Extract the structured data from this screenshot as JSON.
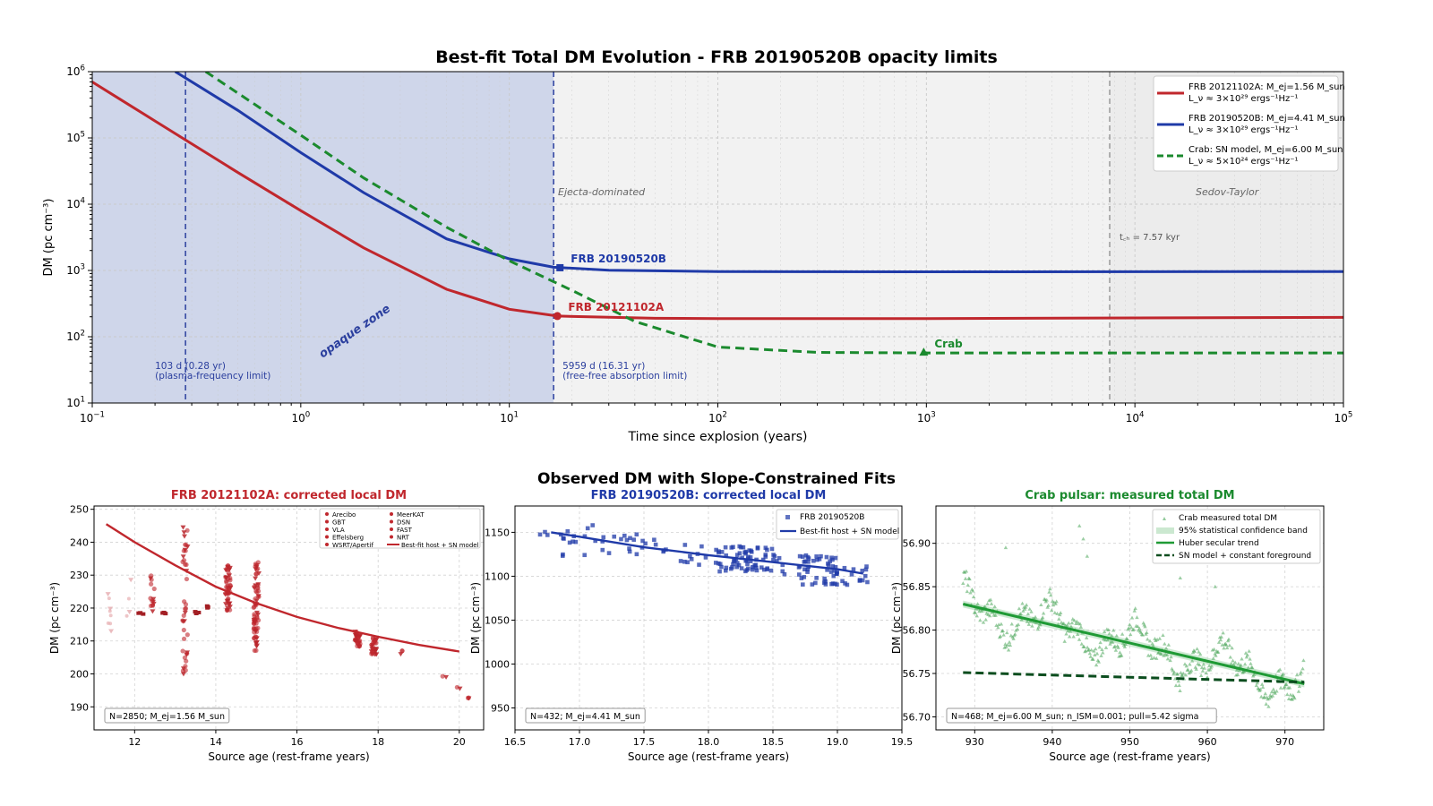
{
  "figure": {
    "top_title": "Best-fit Total DM Evolution - FRB 20190520B opacity limits",
    "bottom_title": "Observed DM with Slope-Constrained Fits"
  },
  "colors": {
    "frb121102": "#c0272d",
    "frb190520": "#1f3aa8",
    "crab": "#1b8a2e",
    "crab_sn": "#0b4d1e",
    "opaque_fill": "#cfd6ea",
    "ejecta_fill": "#f2f2f2",
    "sedov_fill": "#ececec"
  },
  "chart_data": [
    {
      "id": "top",
      "type": "line",
      "title": "Best-fit Total DM Evolution - FRB 20190520B opacity limits",
      "xlabel": "Time since explosion (years)",
      "ylabel": "DM (pc cm⁻³)",
      "xscale": "log",
      "yscale": "log",
      "xlim": [
        0.1,
        100000
      ],
      "ylim": [
        10,
        1000000
      ],
      "xticks": [
        {
          "v": 0.1,
          "b": "10",
          "e": "−1"
        },
        {
          "v": 1,
          "b": "10",
          "e": "0"
        },
        {
          "v": 10,
          "b": "10",
          "e": "1"
        },
        {
          "v": 100,
          "b": "10",
          "e": "2"
        },
        {
          "v": 1000,
          "b": "10",
          "e": "3"
        },
        {
          "v": 10000,
          "b": "10",
          "e": "4"
        },
        {
          "v": 100000,
          "b": "10",
          "e": "5"
        }
      ],
      "yticks": [
        {
          "v": 10,
          "b": "10",
          "e": "1"
        },
        {
          "v": 100,
          "b": "10",
          "e": "2"
        },
        {
          "v": 1000,
          "b": "10",
          "e": "3"
        },
        {
          "v": 10000,
          "b": "10",
          "e": "4"
        },
        {
          "v": 100000,
          "b": "10",
          "e": "5"
        },
        {
          "v": 1000000,
          "b": "10",
          "e": "6"
        }
      ],
      "grid": true,
      "legend_position": "top-right",
      "series": [
        {
          "key": "frb121102",
          "name": "FRB 20121102A: M_ej=1.56 M_sun",
          "sub": "L_ν ≈ 3×10²⁹ ergs⁻¹Hz⁻¹",
          "style": "solid",
          "points": [
            [
              0.1,
              700000
            ],
            [
              0.2,
              180000
            ],
            [
              0.5,
              30000
            ],
            [
              1,
              8000
            ],
            [
              2,
              2200
            ],
            [
              5,
              520
            ],
            [
              10,
              260
            ],
            [
              17.0,
              205
            ],
            [
              50,
              190
            ],
            [
              100,
              188
            ],
            [
              1000,
              188
            ],
            [
              10000,
              192
            ],
            [
              100000,
              196
            ]
          ]
        },
        {
          "key": "frb190520",
          "name": "FRB 20190520B: M_ej=4.41 M_sun",
          "sub": "L_ν ≈ 3×10²⁹ ergs⁻¹Hz⁻¹",
          "style": "solid",
          "points": [
            [
              0.25,
              1000000
            ],
            [
              0.5,
              260000
            ],
            [
              1,
              60000
            ],
            [
              2,
              15000
            ],
            [
              5,
              3000
            ],
            [
              10,
              1500
            ],
            [
              16.3,
              1120
            ],
            [
              30,
              1010
            ],
            [
              100,
              960
            ],
            [
              1000,
              955
            ],
            [
              10000,
              958
            ],
            [
              100000,
              962
            ]
          ]
        },
        {
          "key": "crab",
          "name": "Crab: SN model, M_ej=6.00 M_sun",
          "sub": "L_ν ≈ 5×10²⁴ ergs⁻¹Hz⁻¹",
          "style": "dashed",
          "points": [
            [
              0.35,
              1000000
            ],
            [
              1,
              110000
            ],
            [
              2,
              25000
            ],
            [
              5,
              4500
            ],
            [
              10,
              1400
            ],
            [
              20,
              500
            ],
            [
              40,
              170
            ],
            [
              100,
              70
            ],
            [
              300,
              58
            ],
            [
              1000,
              57
            ],
            [
              100000,
              57
            ]
          ]
        }
      ],
      "markers": [
        {
          "series": "frb190520",
          "shape": "square",
          "x": 17.5,
          "y": 1100,
          "label": "FRB 20190520B"
        },
        {
          "series": "frb121102",
          "shape": "circle",
          "x": 17.0,
          "y": 205,
          "label": "FRB 20121102A"
        },
        {
          "series": "crab",
          "shape": "triangle",
          "x": 971,
          "y": 57,
          "label": "Crab"
        }
      ],
      "regions": [
        {
          "key": "opaque",
          "from": 0.1,
          "to": 16.31
        },
        {
          "key": "ejecta",
          "from": 16.31,
          "to": 7570
        },
        {
          "key": "sedov",
          "from": 7570,
          "to": 100000
        }
      ],
      "vlines": [
        {
          "x": 0.28,
          "style": "dashed-blue",
          "label1": "103 d (0.28 yr)",
          "label2": "(plasma-frequency limit)"
        },
        {
          "x": 16.31,
          "style": "dashed-blue",
          "label1": "5959 d (16.31 yr)",
          "label2": "(free-free absorption limit)"
        },
        {
          "x": 7570,
          "style": "dashed-gray"
        }
      ],
      "annotations": {
        "opaque": "opaque zone",
        "ejecta": "Ejecta-dominated",
        "sedov": "Sedov-Taylor",
        "tch": "t_ch = 7.57 kyr"
      }
    },
    {
      "id": "p1",
      "type": "scatter",
      "title": "FRB 20121102A: corrected local DM",
      "xlabel": "Source age (rest-frame years)",
      "ylabel": "DM (pc cm⁻³)",
      "xlim": [
        11,
        20.6
      ],
      "ylim": [
        183,
        251
      ],
      "xticks": [
        12,
        14,
        16,
        18,
        20
      ],
      "yticks": [
        190,
        200,
        210,
        220,
        230,
        240,
        250
      ],
      "grid": true,
      "legend_position": "top-right",
      "legend": [
        "Arecibo",
        "GBT",
        "VLA",
        "Effelsberg",
        "WSRT/Apertif",
        "MeerKAT",
        "DSN",
        "FAST",
        "NRT",
        "Best-fit host + SN model"
      ],
      "note": "N=2850; M_ej=1.56 M_sun",
      "fit": {
        "name": "Best-fit host + SN model",
        "points": [
          [
            11.3,
            245.5
          ],
          [
            12,
            240
          ],
          [
            13,
            233
          ],
          [
            14,
            226.5
          ],
          [
            15,
            221.5
          ],
          [
            16,
            217.3
          ],
          [
            17,
            214
          ],
          [
            18,
            211.3
          ],
          [
            19,
            208.8
          ],
          [
            20,
            206.8
          ]
        ]
      },
      "clusters": [
        {
          "x": 11.4,
          "y0": 212,
          "y1": 226,
          "n": 8,
          "style": "faint"
        },
        {
          "x": 11.85,
          "y0": 217,
          "y1": 229,
          "n": 4,
          "style": "faint"
        },
        {
          "x": 12.15,
          "y0": 218,
          "y1": 219,
          "n": 3,
          "style": "square"
        },
        {
          "x": 12.45,
          "y0": 218,
          "y1": 230,
          "n": 14,
          "style": "dark"
        },
        {
          "x": 12.7,
          "y0": 218,
          "y1": 219,
          "n": 3,
          "style": "square"
        },
        {
          "x": 13.25,
          "y0": 200,
          "y1": 245,
          "n": 40,
          "style": "dark"
        },
        {
          "x": 13.55,
          "y0": 218,
          "y1": 219,
          "n": 3,
          "style": "square"
        },
        {
          "x": 13.85,
          "y0": 220,
          "y1": 221,
          "n": 3,
          "style": "square"
        },
        {
          "x": 14.3,
          "y0": 219,
          "y1": 233,
          "n": 50,
          "style": "dark"
        },
        {
          "x": 15.0,
          "y0": 207,
          "y1": 234,
          "n": 70,
          "style": "dark"
        },
        {
          "x": 17.5,
          "y0": 208,
          "y1": 213,
          "n": 30,
          "style": "dark"
        },
        {
          "x": 17.9,
          "y0": 206,
          "y1": 211,
          "n": 30,
          "style": "dark"
        },
        {
          "x": 18.55,
          "y0": 205.5,
          "y1": 207.5,
          "n": 3,
          "style": "dark"
        },
        {
          "x": 19.65,
          "y0": 198.5,
          "y1": 199.5,
          "n": 2,
          "style": "dark"
        },
        {
          "x": 19.95,
          "y0": 195.5,
          "y1": 196.5,
          "n": 2,
          "style": "dark"
        },
        {
          "x": 20.25,
          "y0": 192.5,
          "y1": 193.5,
          "n": 3,
          "style": "dark"
        }
      ]
    },
    {
      "id": "p2",
      "type": "scatter",
      "title": "FRB 20190520B: corrected local DM",
      "xlabel": "Source age (rest-frame years)",
      "ylabel": "DM (pc cm⁻³)",
      "xlim": [
        16.5,
        19.5
      ],
      "ylim": [
        925,
        1180
      ],
      "xticks": [
        16.5,
        17.0,
        17.5,
        18.0,
        18.5,
        19.0,
        19.5
      ],
      "yticks": [
        950,
        1000,
        1050,
        1100,
        1150
      ],
      "grid": true,
      "legend_position": "top-right",
      "legend": [
        "FRB 20190520B",
        "Best-fit host + SN model"
      ],
      "note": "N=432; M_ej=4.41 M_sun",
      "fit": {
        "name": "Best-fit host + SN model",
        "points": [
          [
            16.78,
            1150
          ],
          [
            17.0,
            1145
          ],
          [
            17.5,
            1133
          ],
          [
            18.0,
            1124
          ],
          [
            18.5,
            1116
          ],
          [
            19.0,
            1108
          ],
          [
            19.2,
            1103
          ]
        ]
      },
      "clusters": [
        {
          "x": 16.8,
          "y0": 1146,
          "y1": 1155,
          "n": 4
        },
        {
          "x": 17.0,
          "y0": 1118,
          "y1": 1160,
          "n": 14
        },
        {
          "x": 17.3,
          "y0": 1125,
          "y1": 1148,
          "n": 14
        },
        {
          "x": 17.6,
          "y0": 1128,
          "y1": 1143,
          "n": 8
        },
        {
          "x": 17.9,
          "y0": 1113,
          "y1": 1137,
          "n": 10
        },
        {
          "x": 18.2,
          "y0": 1105,
          "y1": 1135,
          "n": 45
        },
        {
          "x": 18.45,
          "y0": 1102,
          "y1": 1133,
          "n": 30
        },
        {
          "x": 18.85,
          "y0": 1090,
          "y1": 1125,
          "n": 45
        },
        {
          "x": 19.1,
          "y0": 1090,
          "y1": 1112,
          "n": 20
        }
      ]
    },
    {
      "id": "p3",
      "type": "scatter",
      "title": "Crab pulsar: measured total DM",
      "xlabel": "Source age (rest-frame years)",
      "ylabel": "DM (pc cm⁻³)",
      "xlim": [
        925,
        975
      ],
      "ylim": [
        56.685,
        56.943
      ],
      "xticks": [
        930,
        940,
        950,
        960,
        970
      ],
      "yticks": [
        56.7,
        56.75,
        56.8,
        56.85,
        56.9
      ],
      "grid": true,
      "legend_position": "top-right",
      "legend": [
        "Crab measured total DM",
        "95% statistical confidence band",
        "Huber secular trend",
        "SN model + constant foreground"
      ],
      "note": "N=468; M_ej=6.00 M_sun; n_ISM=0.001; pull=5.42 sigma",
      "trend": {
        "name": "Huber secular trend",
        "points": [
          [
            928.5,
            56.83
          ],
          [
            972.5,
            56.738
          ]
        ]
      },
      "sn_model": {
        "name": "SN model + constant foreground",
        "points": [
          [
            928.5,
            56.751
          ],
          [
            972.5,
            56.74
          ]
        ]
      },
      "noisy": {
        "x0": 928.5,
        "x1": 972.5,
        "n": 420,
        "amp": 0.025
      },
      "outliers": [
        [
          934,
          56.895
        ],
        [
          943.5,
          56.92
        ],
        [
          944,
          56.905
        ],
        [
          944.5,
          56.885
        ],
        [
          956.5,
          56.86
        ],
        [
          961,
          56.85
        ]
      ]
    }
  ]
}
